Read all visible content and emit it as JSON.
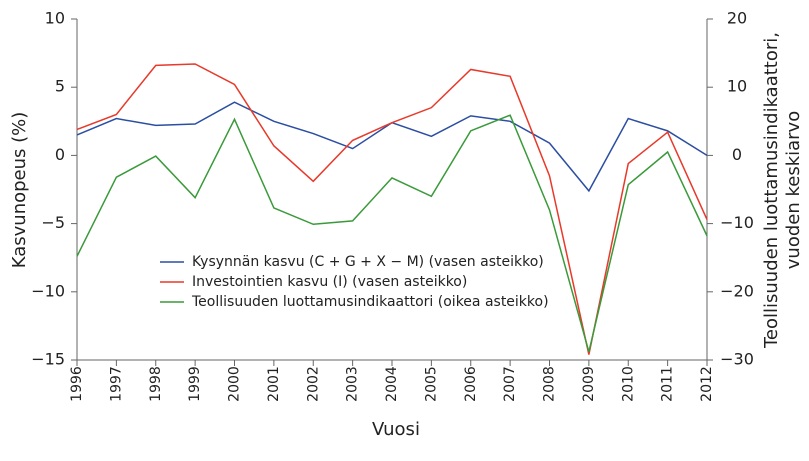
{
  "chart_data": {
    "type": "line",
    "x_label": "Vuosi",
    "y_label": "Kasvunopeus (%)",
    "y2_label": [
      "Teollisuuden luottamusindikaattori,",
      "vuoden keskiarvo"
    ],
    "categories": [
      "1996",
      "1997",
      "1998",
      "1999",
      "2000",
      "2001",
      "2002",
      "2003",
      "2004",
      "2005",
      "2006",
      "2007",
      "2008",
      "2009",
      "2010",
      "2011",
      "2012"
    ],
    "ylim": [
      -15,
      10
    ],
    "yticks": [
      {
        "value": -15,
        "label": "−15"
      },
      {
        "value": -10,
        "label": "−10"
      },
      {
        "value": -5,
        "label": "−5"
      },
      0,
      5,
      10
    ],
    "y2lim": [
      -30,
      20
    ],
    "y2ticks": [
      {
        "value": -30,
        "label": "−30"
      },
      {
        "value": -20,
        "label": "−20"
      },
      {
        "value": -10,
        "label": "−10"
      },
      0,
      10,
      20
    ],
    "legend": "lower-left",
    "series": [
      {
        "name": "Kysynnän kasvu (C + G + X − M) (vasen asteikko)",
        "color": "#2b4ea2",
        "values": [
          1.5,
          2.7,
          2.2,
          2.3,
          3.9,
          2.5,
          1.6,
          0.5,
          2.4,
          1.4,
          2.9,
          2.5,
          0.9,
          -2.6,
          2.7,
          1.8,
          0.0
        ]
      },
      {
        "name": "Investointien kasvu (I) (vasen asteikko)",
        "color": "#e8392a",
        "values": [
          1.9,
          3.0,
          6.6,
          6.7,
          5.2,
          0.7,
          -1.9,
          1.1,
          2.4,
          3.5,
          6.3,
          5.8,
          -1.5,
          -14.6,
          -0.6,
          1.7,
          -4.7
        ]
      },
      {
        "name": "Teollisuuden luottamusindikaattori (oikea asteikko)",
        "color": "#3a9a3a",
        "axis": "y2",
        "values": [
          -14.8,
          -3.2,
          -0.1,
          -6.2,
          5.3,
          -7.7,
          -10.1,
          -9.6,
          -3.3,
          -6.0,
          3.6,
          5.9,
          -8.0,
          -28.8,
          -4.3,
          0.5,
          -11.8
        ]
      }
    ]
  }
}
